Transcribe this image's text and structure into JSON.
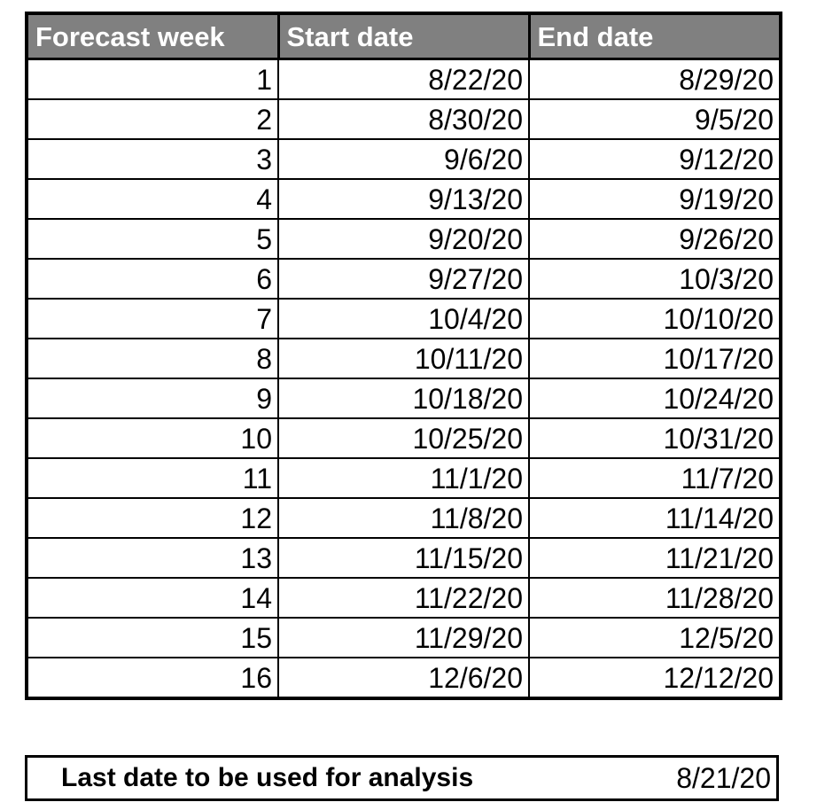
{
  "table": {
    "headers": [
      "Forecast week",
      "Start date",
      "End date"
    ],
    "rows": [
      [
        "1",
        "8/22/20",
        "8/29/20"
      ],
      [
        "2",
        "8/30/20",
        "9/5/20"
      ],
      [
        "3",
        "9/6/20",
        "9/12/20"
      ],
      [
        "4",
        "9/13/20",
        "9/19/20"
      ],
      [
        "5",
        "9/20/20",
        "9/26/20"
      ],
      [
        "6",
        "9/27/20",
        "10/3/20"
      ],
      [
        "7",
        "10/4/20",
        "10/10/20"
      ],
      [
        "8",
        "10/11/20",
        "10/17/20"
      ],
      [
        "9",
        "10/18/20",
        "10/24/20"
      ],
      [
        "10",
        "10/25/20",
        "10/31/20"
      ],
      [
        "11",
        "11/1/20",
        "11/7/20"
      ],
      [
        "12",
        "11/8/20",
        "11/14/20"
      ],
      [
        "13",
        "11/15/20",
        "11/21/20"
      ],
      [
        "14",
        "11/22/20",
        "11/28/20"
      ],
      [
        "15",
        "11/29/20",
        "12/5/20"
      ],
      [
        "16",
        "12/6/20",
        "12/12/20"
      ]
    ]
  },
  "summary": {
    "label": "Last date to be used for analysis",
    "value": "8/21/20"
  },
  "colors": {
    "header_background": "#808080",
    "header_text": "#ffffff",
    "border": "#000000"
  }
}
